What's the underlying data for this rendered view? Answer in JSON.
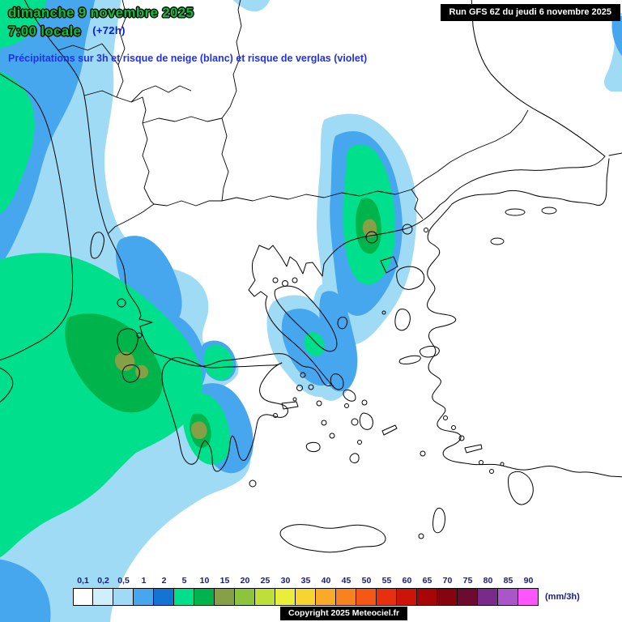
{
  "header": {
    "date_line": "dimanche 9 novembre 2025",
    "time_line": "7:00 locale",
    "offset_label": "(+72h)",
    "subtitle": "Précipitations sur 3h et risque de neige (blanc) et risque de verglas (violet)",
    "run_info": "Run GFS 6Z du jeudi 6 novembre 2025"
  },
  "legend": {
    "unit": "(mm/3h)",
    "items": [
      {
        "label": "0,1",
        "color": "#ffffff"
      },
      {
        "label": "0,2",
        "color": "#cfeffa"
      },
      {
        "label": "0,5",
        "color": "#a0dbf6"
      },
      {
        "label": "1",
        "color": "#46a7ef"
      },
      {
        "label": "2",
        "color": "#1474d4"
      },
      {
        "label": "5",
        "color": "#00e08c"
      },
      {
        "label": "10",
        "color": "#00b44c"
      },
      {
        "label": "15",
        "color": "#85a045"
      },
      {
        "label": "20",
        "color": "#8cc43c"
      },
      {
        "label": "25",
        "color": "#bede3a"
      },
      {
        "label": "30",
        "color": "#e8ee3a"
      },
      {
        "label": "35",
        "color": "#f6d432"
      },
      {
        "label": "40",
        "color": "#f8aa28"
      },
      {
        "label": "45",
        "color": "#f8821e"
      },
      {
        "label": "50",
        "color": "#f45814"
      },
      {
        "label": "55",
        "color": "#e8300e"
      },
      {
        "label": "60",
        "color": "#cc1408"
      },
      {
        "label": "65",
        "color": "#a80606"
      },
      {
        "label": "70",
        "color": "#860410"
      },
      {
        "label": "75",
        "color": "#6e0a30"
      },
      {
        "label": "80",
        "color": "#7a2a8a"
      },
      {
        "label": "85",
        "color": "#aa55c8"
      },
      {
        "label": "90",
        "color": "#ff55ff"
      }
    ]
  },
  "footer": {
    "copyright": "Copyright 2025 Meteociel.fr"
  },
  "map": {
    "fills": {
      "rain_0_5mm": "#a0dbf6",
      "rain_1mm": "#46a7ef",
      "rain_2_5mm": "#00e08c",
      "rain_10mm": "#00b44c",
      "rain_15mm": "#85a045"
    }
  }
}
